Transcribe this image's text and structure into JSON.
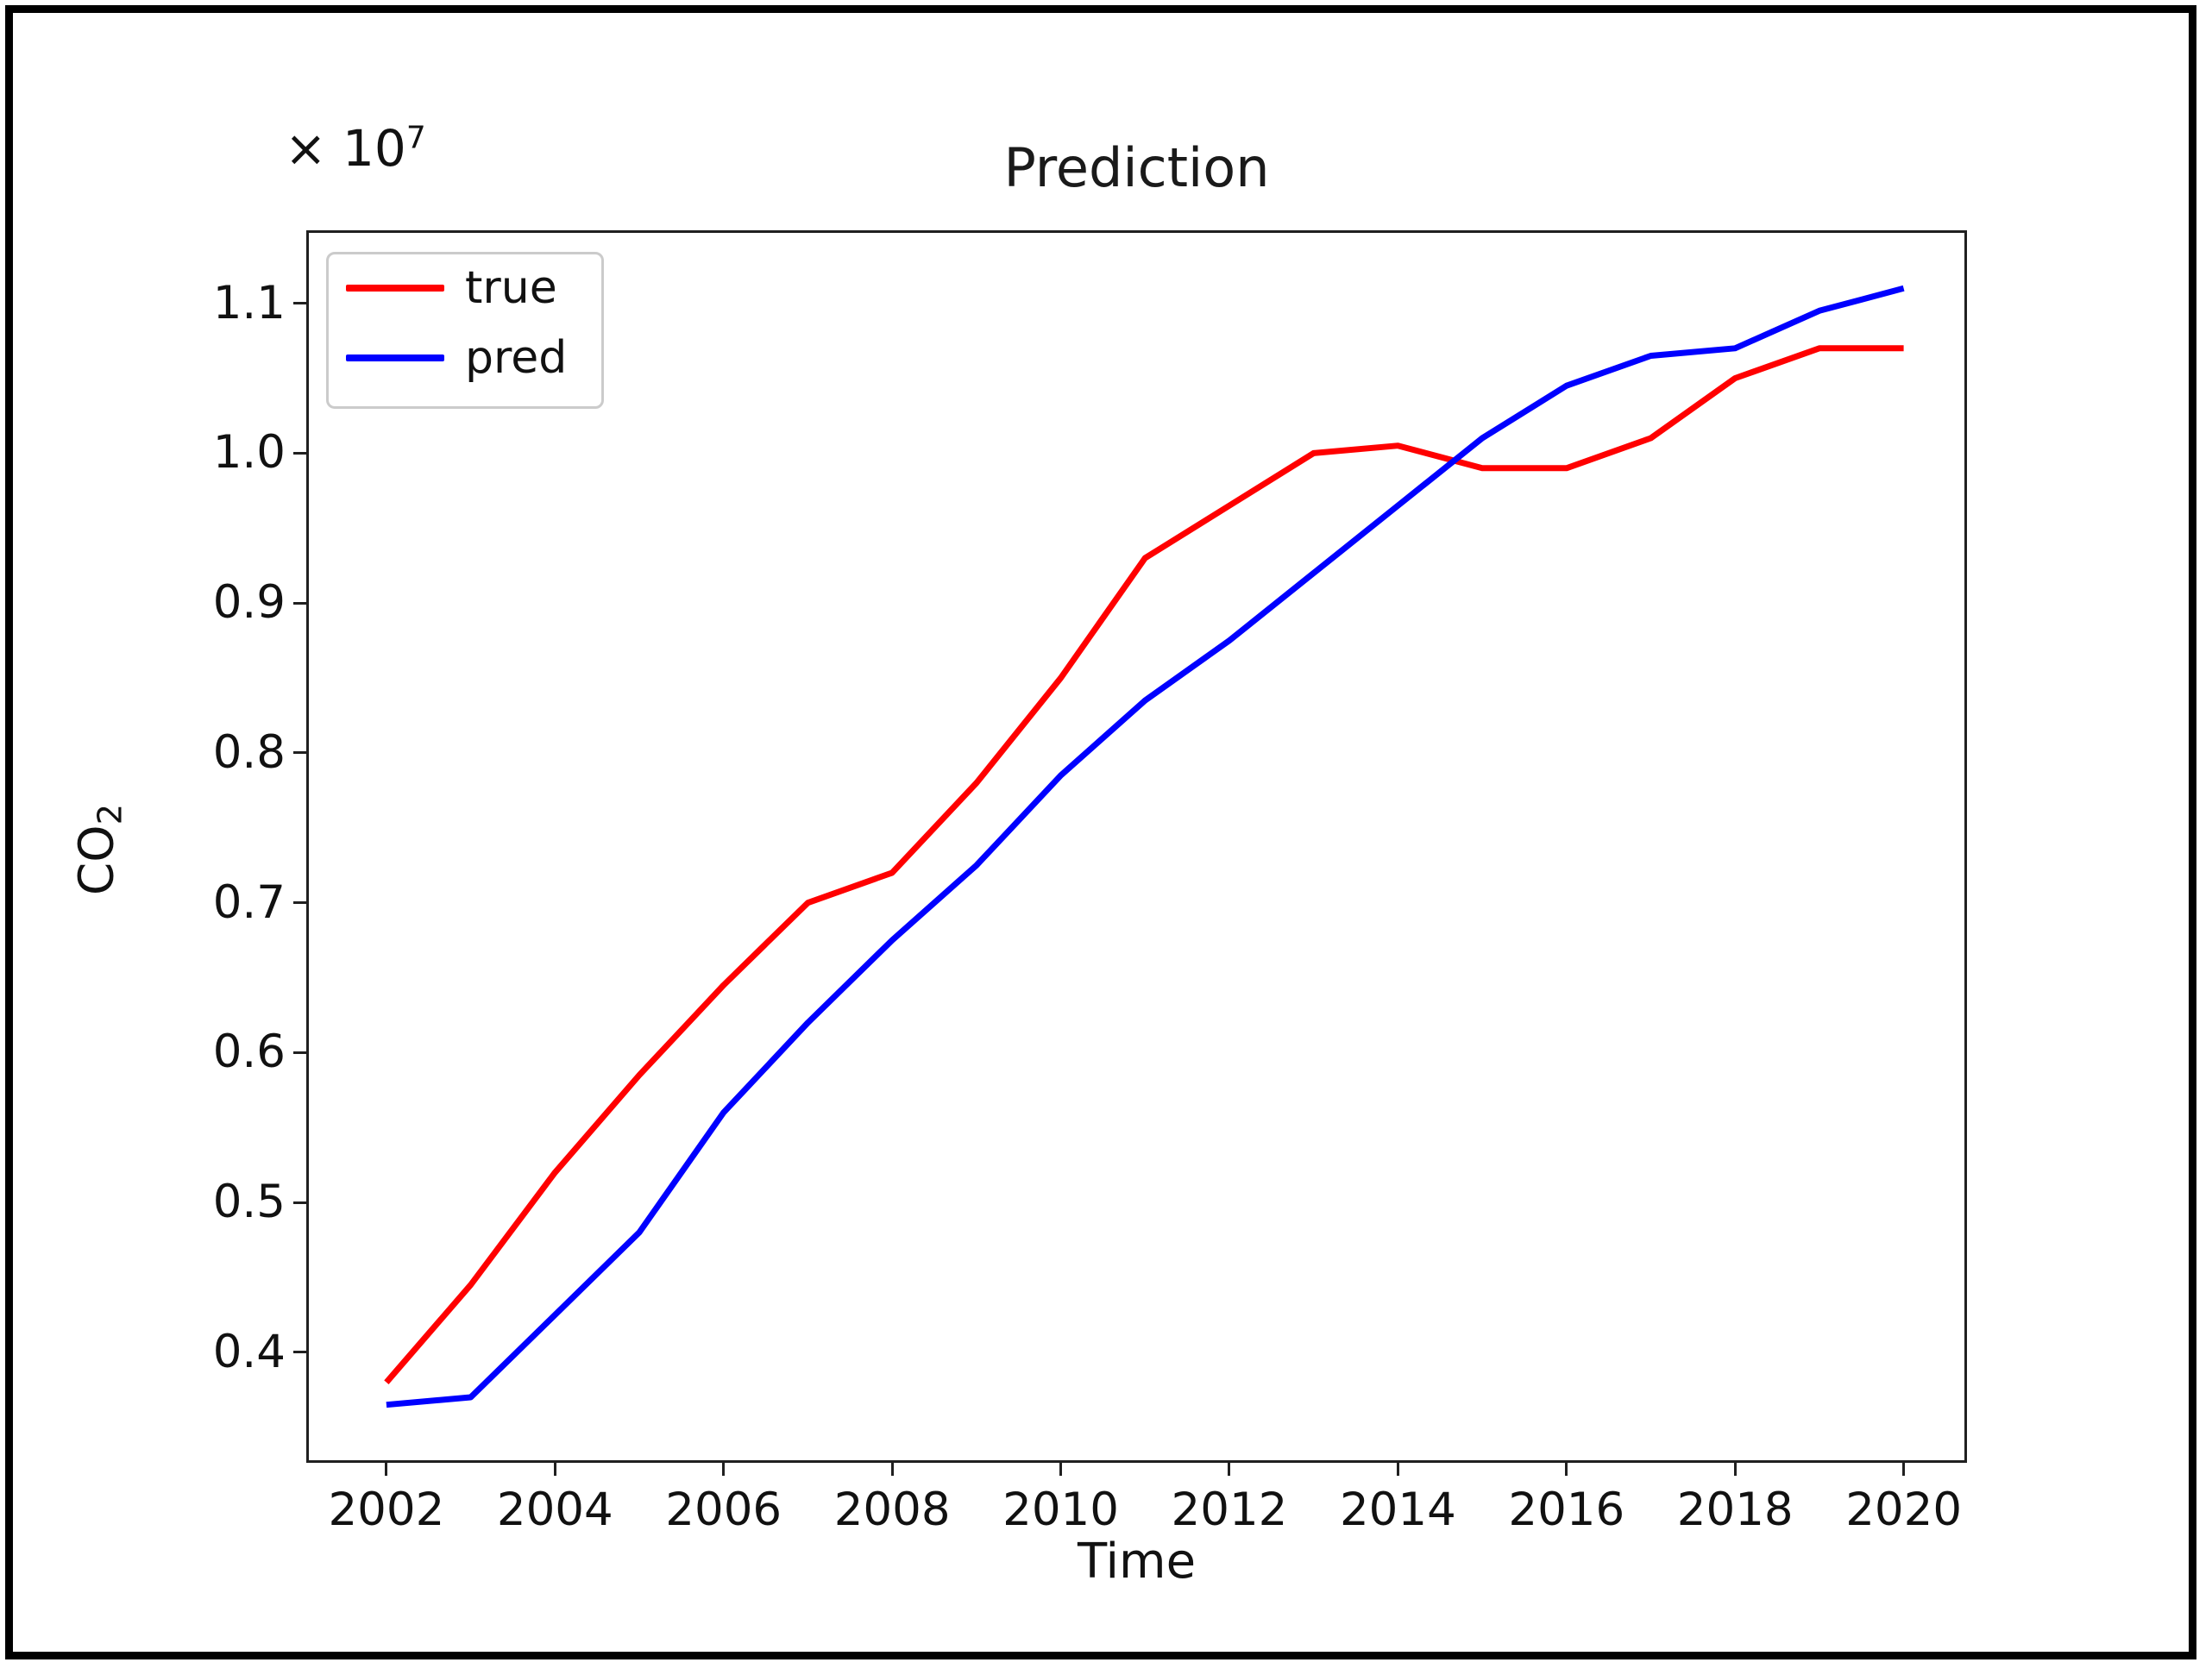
{
  "figure": {
    "title": "Prediction",
    "xlabel": "Time",
    "ylabel_base": "CO",
    "ylabel_sub": "2",
    "offset_base": "× 10",
    "offset_exp": "7",
    "frame_color": "#000000",
    "spine_color": "#202020"
  },
  "legend": {
    "items": [
      {
        "label": "true",
        "color": "#ff0000"
      },
      {
        "label": "pred",
        "color": "#0000ff"
      }
    ]
  },
  "chart_data": {
    "type": "line",
    "title": "Prediction",
    "xlabel": "Time",
    "ylabel": "CO2",
    "y_unit_multiplier": "×10^7",
    "grid": false,
    "legend_position": "upper left",
    "x": [
      2002,
      2003,
      2004,
      2005,
      2006,
      2007,
      2008,
      2009,
      2010,
      2011,
      2012,
      2013,
      2014,
      2015,
      2016,
      2017,
      2018,
      2019,
      2020
    ],
    "series": [
      {
        "name": "true",
        "color": "#ff0000",
        "values": [
          0.38,
          0.445,
          0.52,
          0.585,
          0.645,
          0.7,
          0.72,
          0.78,
          0.85,
          0.93,
          0.965,
          1.0,
          1.005,
          0.99,
          0.99,
          1.01,
          1.05,
          1.07,
          1.07
        ]
      },
      {
        "name": "pred",
        "color": "#0000ff",
        "values": [
          0.365,
          0.37,
          0.425,
          0.48,
          0.56,
          0.62,
          0.675,
          0.725,
          0.785,
          0.835,
          0.875,
          0.92,
          0.965,
          1.01,
          1.045,
          1.065,
          1.07,
          1.095,
          1.11
        ]
      }
    ],
    "xticks": [
      2002,
      2004,
      2006,
      2008,
      2010,
      2012,
      2014,
      2016,
      2018,
      2020
    ],
    "yticks": [
      0.4,
      0.5,
      0.6,
      0.7,
      0.8,
      0.9,
      1.0,
      1.1
    ],
    "xlim": [
      2001.08,
      2020.72
    ],
    "ylim": [
      0.328,
      1.147
    ]
  }
}
